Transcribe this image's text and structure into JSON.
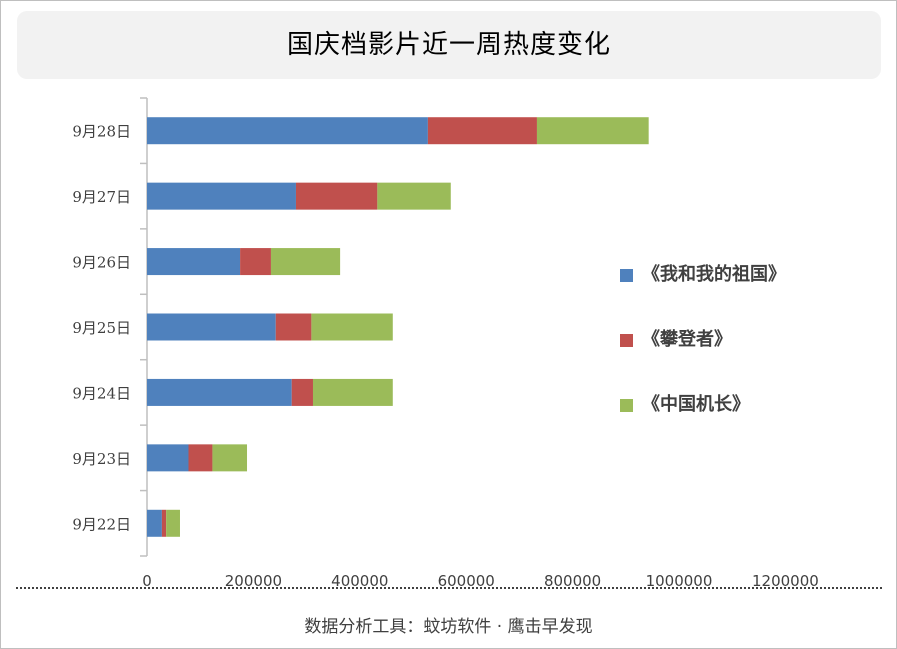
{
  "title": "国庆档影片近一周热度变化",
  "footer": "数据分析工具：蚊坊软件 · 鹰击早发现",
  "colors": {
    "series": [
      "#4f81bd",
      "#c0504d",
      "#9bbb59"
    ],
    "axis": "#bfbfbf",
    "text": "#404040"
  },
  "chart_data": {
    "type": "bar",
    "orientation": "horizontal",
    "stacked": true,
    "categories": [
      "9月22日",
      "9月23日",
      "9月24日",
      "9月25日",
      "9月26日",
      "9月27日",
      "9月28日"
    ],
    "series": [
      {
        "name": "《我和我的祖国》",
        "values": [
          28000,
          78000,
          272000,
          242000,
          175000,
          280000,
          528000
        ]
      },
      {
        "name": "《攀登者》",
        "values": [
          8000,
          45000,
          40000,
          67000,
          58000,
          153000,
          205000
        ]
      },
      {
        "name": "《中国机长》",
        "values": [
          26000,
          65000,
          150000,
          153000,
          130000,
          138000,
          210000
        ]
      }
    ],
    "xlim": [
      0,
      1200000
    ],
    "xticks": [
      "0",
      "200000",
      "400000",
      "600000",
      "800000",
      "1000000",
      "1200000"
    ],
    "legend_position": "right",
    "grid": false
  }
}
